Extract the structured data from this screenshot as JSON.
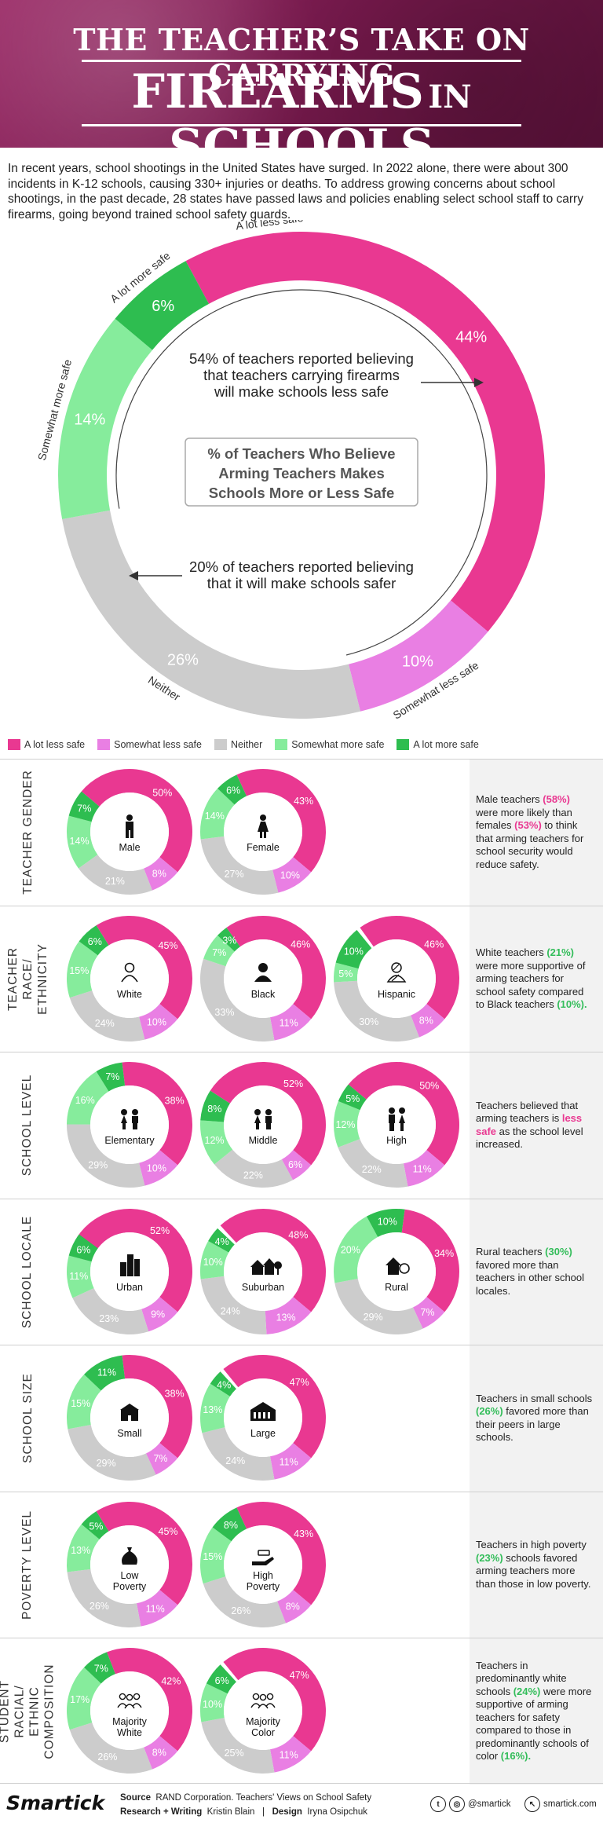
{
  "banner": {
    "line1": "THE TEACHER’S TAKE ON CARRYING",
    "line2a": "FIREARMS",
    "line2b": "IN",
    "line2c": "SCHOOLS"
  },
  "intro": "In recent years, school shootings in the United States have surged. In 2022 alone, there were about 300 incidents in K-12 schools, causing 330+ injuries or deaths. To address growing concerns about school shootings, in the past decade, 28 states have passed laws and policies enabling select school staff to carry firearms, going beyond trained school safety guards.",
  "colors": {
    "a_lot_less_safe": "#e93891",
    "somewhat_less_safe": "#e97fe3",
    "neither": "#cccccc",
    "somewhat_more_safe": "#86ec9c",
    "a_lot_more_safe": "#2ebd50"
  },
  "legend": [
    "A lot less safe",
    "Somewhat less safe",
    "Neither",
    "Somewhat more safe",
    "A lot more safe"
  ],
  "main": {
    "center_title": [
      "% of Teachers Who Believe",
      "Arming Teachers Makes",
      "Schools More or Less Safe"
    ],
    "annotation_less": [
      "54% of teachers reported believing",
      "that teachers carrying firearms",
      "will make schools less safe"
    ],
    "annotation_more": [
      "20% of teachers reported believing",
      "that it will make schools safer"
    ],
    "segment_labels": [
      "A lot less safe",
      "Somewhat less safe",
      "Neither",
      "Somewhat more safe",
      "A lot more safe"
    ]
  },
  "chart_data": {
    "type": "pie",
    "title": "% of Teachers Who Believe Arming Teachers Makes Schools More or Less Safe",
    "categories": [
      "A lot less safe",
      "Somewhat less safe",
      "Neither",
      "Somewhat more safe",
      "A lot more safe"
    ],
    "values": [
      44,
      10,
      26,
      14,
      6
    ],
    "subgroups": [
      {
        "section": "TEACHER GENDER",
        "note": [
          [
            "Male teachers ",
            ""
          ],
          [
            "(58%)",
            "pink"
          ],
          [
            " were more likely than females ",
            ""
          ],
          [
            "(53%)",
            "pink"
          ],
          [
            " to think that arming teachers for school security would reduce safety.",
            ""
          ]
        ],
        "donuts": [
          {
            "label": "Male",
            "icon": "male-person-icon",
            "values": [
              50,
              8,
              21,
              14,
              7
            ]
          },
          {
            "label": "Female",
            "icon": "female-person-icon",
            "values": [
              43,
              10,
              27,
              14,
              6
            ]
          }
        ]
      },
      {
        "section": "TEACHER RACE/ ETHNICITY",
        "note": [
          [
            "White teachers ",
            ""
          ],
          [
            "(21%)",
            "green"
          ],
          [
            " were more supportive of arming teachers for school safety compared to Black teachers ",
            ""
          ],
          [
            "(10%).",
            "green"
          ]
        ],
        "donuts": [
          {
            "label": "White",
            "icon": "person-outline-icon",
            "values": [
              45,
              10,
              24,
              15,
              6
            ]
          },
          {
            "label": "Black",
            "icon": "person-solid-icon",
            "values": [
              46,
              11,
              33,
              7,
              3
            ]
          },
          {
            "label": "Hispanic",
            "icon": "person-hatched-icon",
            "values": [
              46,
              8,
              30,
              5,
              10
            ]
          }
        ]
      },
      {
        "section": "SCHOOL LEVEL",
        "note": [
          [
            "Teachers believed that arming teachers is ",
            ""
          ],
          [
            "less safe",
            "pink"
          ],
          [
            " as the school level increased.",
            ""
          ]
        ],
        "donuts": [
          {
            "label": "Elementary",
            "icon": "kids-icon",
            "values": [
              38,
              10,
              29,
              16,
              7
            ]
          },
          {
            "label": "Middle",
            "icon": "kids-icon",
            "values": [
              52,
              6,
              22,
              12,
              8
            ]
          },
          {
            "label": "High",
            "icon": "teens-icon",
            "values": [
              50,
              11,
              22,
              12,
              5
            ]
          }
        ]
      },
      {
        "section": "SCHOOL LOCALE",
        "note": [
          [
            "Rural teachers ",
            ""
          ],
          [
            "(30%)",
            "green"
          ],
          [
            " favored more than teachers in other school locales.",
            ""
          ]
        ],
        "donuts": [
          {
            "label": "Urban",
            "icon": "city-buildings-icon",
            "values": [
              52,
              9,
              23,
              11,
              6
            ]
          },
          {
            "label": "Suburban",
            "icon": "suburban-houses-icon",
            "values": [
              48,
              13,
              24,
              10,
              4
            ]
          },
          {
            "label": "Rural",
            "icon": "rural-house-icon",
            "values": [
              34,
              7,
              29,
              20,
              10
            ]
          }
        ]
      },
      {
        "section": "SCHOOL SIZE",
        "note": [
          [
            "Teachers in small schools ",
            ""
          ],
          [
            "(26%)",
            "green"
          ],
          [
            " favored more than their peers in large schools.",
            ""
          ]
        ],
        "donuts": [
          {
            "label": "Small",
            "icon": "small-school-icon",
            "values": [
              38,
              7,
              29,
              15,
              11
            ]
          },
          {
            "label": "Large",
            "icon": "large-school-icon",
            "values": [
              47,
              11,
              24,
              13,
              4
            ]
          }
        ]
      },
      {
        "section": "POVERTY LEVEL",
        "note": [
          [
            "Teachers in high poverty ",
            ""
          ],
          [
            "(23%)",
            "green"
          ],
          [
            " schools favored arming teachers more than those in low poverty.",
            ""
          ]
        ],
        "donuts": [
          {
            "label": "Low Poverty",
            "icon": "money-bag-icon",
            "values": [
              45,
              11,
              26,
              13,
              5
            ]
          },
          {
            "label": "High Poverty",
            "icon": "hand-coin-icon",
            "values": [
              43,
              8,
              26,
              15,
              8
            ]
          }
        ]
      },
      {
        "section": "STUDENT RACIAL/ ETHNIC COMPOSITION",
        "note": [
          [
            "Teachers in predominantly white schools ",
            ""
          ],
          [
            "(24%)",
            "green"
          ],
          [
            " were more supportive of arming teachers for safety compared to those in predominantly schools of color ",
            ""
          ],
          [
            "(16%).",
            "green"
          ]
        ],
        "donuts": [
          {
            "label": "Majority White",
            "icon": "group-icon",
            "values": [
              42,
              8,
              26,
              17,
              7
            ]
          },
          {
            "label": "Majority Color",
            "icon": "group-icon",
            "values": [
              47,
              11,
              25,
              10,
              6
            ]
          }
        ]
      }
    ]
  },
  "footer": {
    "logo": "Smartick",
    "source_label": "Source",
    "source": "RAND Corporation. Teachers' Views on School Safety",
    "research_label": "Research + Writing",
    "research": "Kristin Blain",
    "sep": "|",
    "design_label": "Design",
    "design": "Iryna Osipchuk",
    "social": "@smartick",
    "site": "smartick.com"
  }
}
